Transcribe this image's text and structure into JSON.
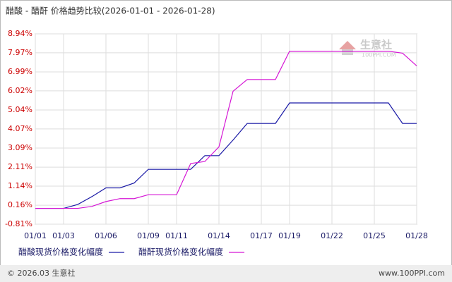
{
  "chart_data": {
    "type": "line",
    "title": "醋酸 - 醋酐 价格趋势比较(2026-01-01 - 2026-01-28)",
    "categories": [
      "01/01",
      null,
      "01/03",
      null,
      null,
      "01/06",
      null,
      null,
      "01/09",
      null,
      "01/11",
      null,
      null,
      "01/14",
      null,
      null,
      "01/17",
      null,
      "01/19",
      null,
      null,
      "01/22",
      null,
      null,
      "01/25",
      null,
      null,
      "01/28"
    ],
    "series": [
      {
        "name": "醋酸现货价格变化幅度",
        "color": "#1a1aa6",
        "values": [
          0,
          0,
          0,
          0.2,
          0.6,
          1.05,
          1.05,
          1.3,
          2.0,
          2.0,
          2.0,
          2.0,
          2.7,
          2.7,
          3.5,
          4.35,
          4.35,
          4.35,
          5.4,
          5.4,
          5.4,
          5.4,
          5.4,
          5.4,
          5.4,
          5.4,
          4.35,
          4.35
        ]
      },
      {
        "name": "醋酐现货价格变化幅度",
        "color": "#d516d5",
        "values": [
          0,
          0,
          0,
          0,
          0.1,
          0.35,
          0.5,
          0.5,
          0.7,
          0.7,
          0.7,
          2.3,
          2.4,
          3.15,
          6.0,
          6.6,
          6.6,
          6.6,
          8.05,
          8.05,
          8.05,
          8.05,
          8.05,
          8.05,
          8.05,
          8.05,
          7.95,
          7.3
        ]
      }
    ],
    "ylim": [
      -0.81,
      8.94
    ],
    "yticks": [
      {
        "value": 8.94,
        "label": "8.94%"
      },
      {
        "value": 7.97,
        "label": "7.97%"
      },
      {
        "value": 6.99,
        "label": "6.99%"
      },
      {
        "value": 6.02,
        "label": "6.02%"
      },
      {
        "value": 5.04,
        "label": "5.04%"
      },
      {
        "value": 4.07,
        "label": "4.07%"
      },
      {
        "value": 3.09,
        "label": "3.09%"
      },
      {
        "value": 2.11,
        "label": "2.11%"
      },
      {
        "value": 1.14,
        "label": "1.14%"
      },
      {
        "value": 0.16,
        "label": "0.16%"
      },
      {
        "value": -0.81,
        "label": "-0.81%"
      }
    ],
    "grid": true
  },
  "watermark": {
    "brand": "生意社",
    "site": "100PPI.COM"
  },
  "footer": {
    "copyright": "© 2026.03 生意社",
    "site": "www.100PPI.com"
  }
}
